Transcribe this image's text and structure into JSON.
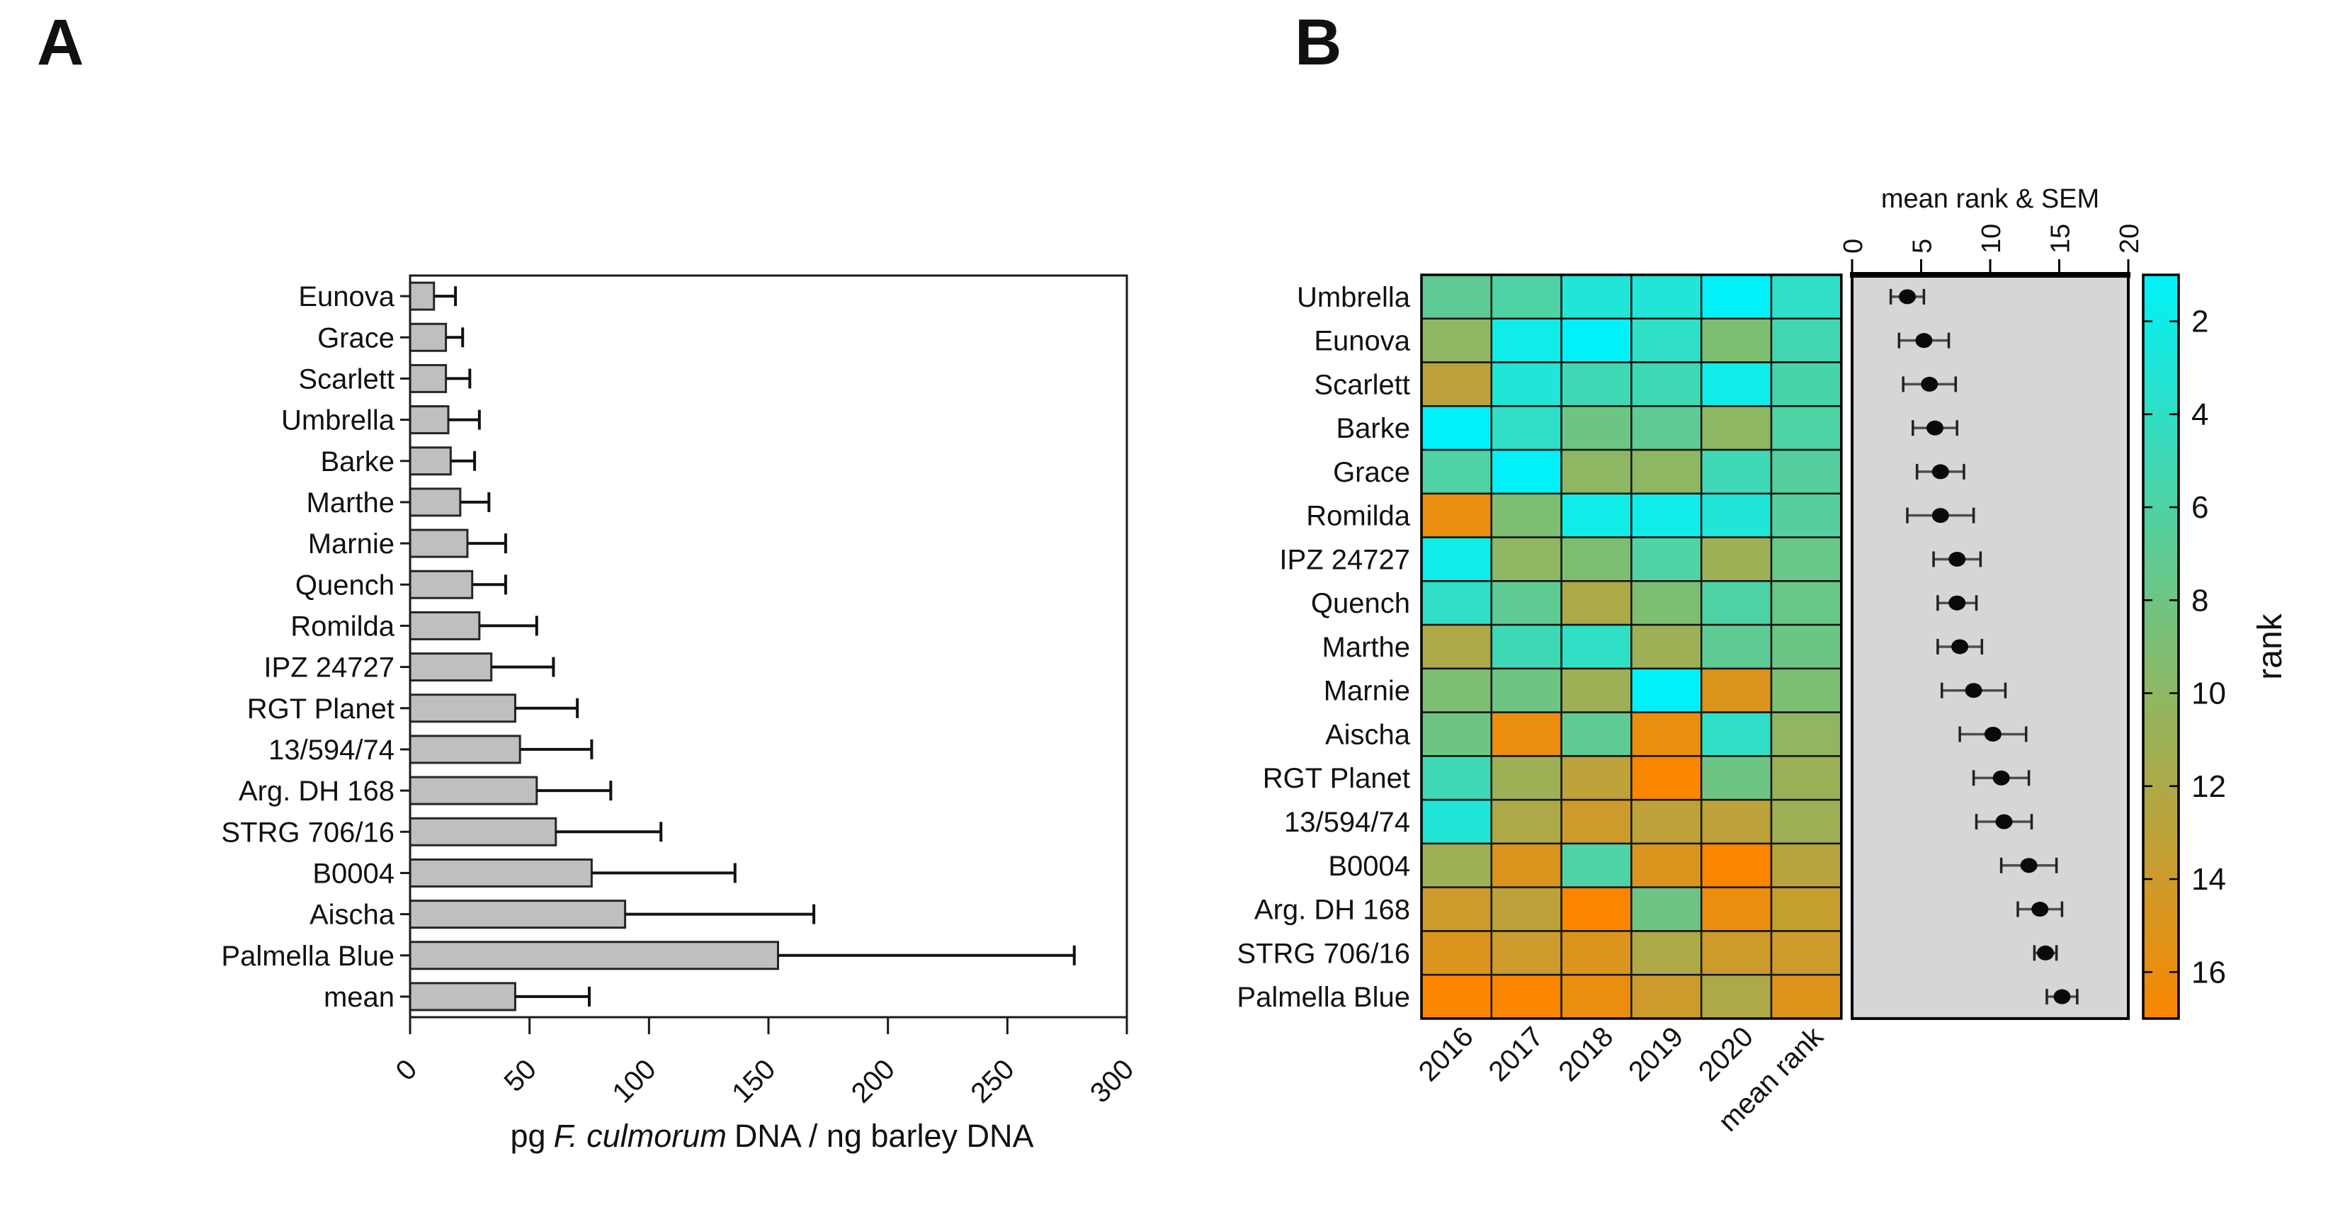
{
  "figure": {
    "panel_a_letter": "A",
    "panel_b_letter": "B"
  },
  "colors": {
    "bar_fill": "#bfbfbf",
    "bar_stroke": "#262626",
    "axis_color": "#1a1a1a",
    "dotplot_bg": "#d6d6d6",
    "dot_color": "#0a0a0a",
    "error_line": "#4d4d4d",
    "cell_stroke": "#141414"
  },
  "chart_data": [
    {
      "id": "panel_a",
      "type": "bar",
      "orientation": "horizontal",
      "xlabel_prefix": "pg",
      "xlabel_italic": "F. culmorum",
      "xlabel_suffix": "DNA / ng barley DNA",
      "categories": [
        "Eunova",
        "Grace",
        "Scarlett",
        "Umbrella",
        "Barke",
        "Marthe",
        "Marnie",
        "Quench",
        "Romilda",
        "IPZ 24727",
        "RGT Planet",
        "13/594/74",
        "Arg. DH 168",
        "STRG 706/16",
        "B0004",
        "Aischa",
        "Palmella Blue",
        "mean"
      ],
      "values": [
        10,
        15,
        15,
        16,
        17,
        21,
        24,
        26,
        29,
        34,
        44,
        46,
        53,
        61,
        76,
        90,
        154,
        44
      ],
      "upper_errors": [
        9,
        7,
        10,
        13,
        10,
        12,
        16,
        14,
        24,
        26,
        26,
        30,
        31,
        44,
        60,
        79,
        124,
        31
      ],
      "x_ticks": [
        0,
        50,
        100,
        150,
        200,
        250,
        300
      ],
      "xlim": [
        0,
        300
      ],
      "grid": false
    },
    {
      "id": "panel_b_heatmap",
      "type": "heatmap",
      "rows": [
        "Umbrella",
        "Eunova",
        "Scarlett",
        "Barke",
        "Grace",
        "Romilda",
        "IPZ 24727",
        "Quench",
        "Marthe",
        "Marnie",
        "Aischa",
        "RGT Planet",
        "13/594/74",
        "B0004",
        "Arg. DH 168",
        "STRG 706/16",
        "Palmella Blue"
      ],
      "columns": [
        "2016",
        "2017",
        "2018",
        "2019",
        "2020",
        "mean rank"
      ],
      "ranks": [
        [
          7,
          6,
          3,
          3,
          1
        ],
        [
          10,
          2,
          1,
          4,
          9
        ],
        [
          13,
          3,
          5,
          5,
          2
        ],
        [
          1,
          4,
          8,
          7,
          10
        ],
        [
          6,
          1,
          10,
          10,
          5
        ],
        [
          16,
          9,
          2,
          2,
          3
        ],
        [
          2,
          10,
          9,
          6,
          11
        ],
        [
          4,
          7,
          12,
          9,
          6
        ],
        [
          12,
          5,
          4,
          11,
          7
        ],
        [
          9,
          8,
          11,
          1,
          15
        ],
        [
          8,
          16,
          7,
          16,
          4
        ],
        [
          5,
          11,
          13,
          17,
          8
        ],
        [
          3,
          12,
          14,
          13,
          13
        ],
        [
          11,
          15,
          6,
          15,
          17
        ],
        [
          14,
          13,
          17,
          8,
          16
        ],
        [
          15,
          14,
          15,
          12,
          14
        ],
        [
          17,
          17,
          16,
          14,
          12
        ]
      ],
      "mean_ranks": [
        4.0,
        5.2,
        5.6,
        6.0,
        6.4,
        6.4,
        7.6,
        7.6,
        7.8,
        8.8,
        10.2,
        10.8,
        11.0,
        12.8,
        13.6,
        14.0,
        15.2
      ],
      "colormap": {
        "min_rank": 1,
        "max_rank": 17,
        "stops": [
          "#00F2F8",
          "#7EBE72",
          "#FA8600"
        ]
      }
    },
    {
      "id": "panel_b_dotplot",
      "type": "scatter",
      "title": "mean rank & SEM",
      "x_ticks": [
        0,
        5,
        10,
        15,
        20
      ],
      "xlim": [
        0,
        20
      ],
      "means": [
        4.0,
        5.2,
        5.6,
        6.0,
        6.4,
        6.4,
        7.6,
        7.6,
        7.8,
        8.8,
        10.2,
        10.8,
        11.0,
        12.8,
        13.6,
        14.0,
        15.2
      ],
      "sems": [
        1.2,
        1.8,
        1.9,
        1.6,
        1.7,
        2.4,
        1.7,
        1.4,
        1.6,
        2.3,
        2.4,
        2.0,
        2.0,
        2.0,
        1.6,
        0.8,
        1.1
      ]
    },
    {
      "id": "panel_b_colorbar",
      "type": "colorbar",
      "label": "rank",
      "ticks": [
        2,
        4,
        6,
        8,
        10,
        12,
        14,
        16
      ]
    }
  ]
}
